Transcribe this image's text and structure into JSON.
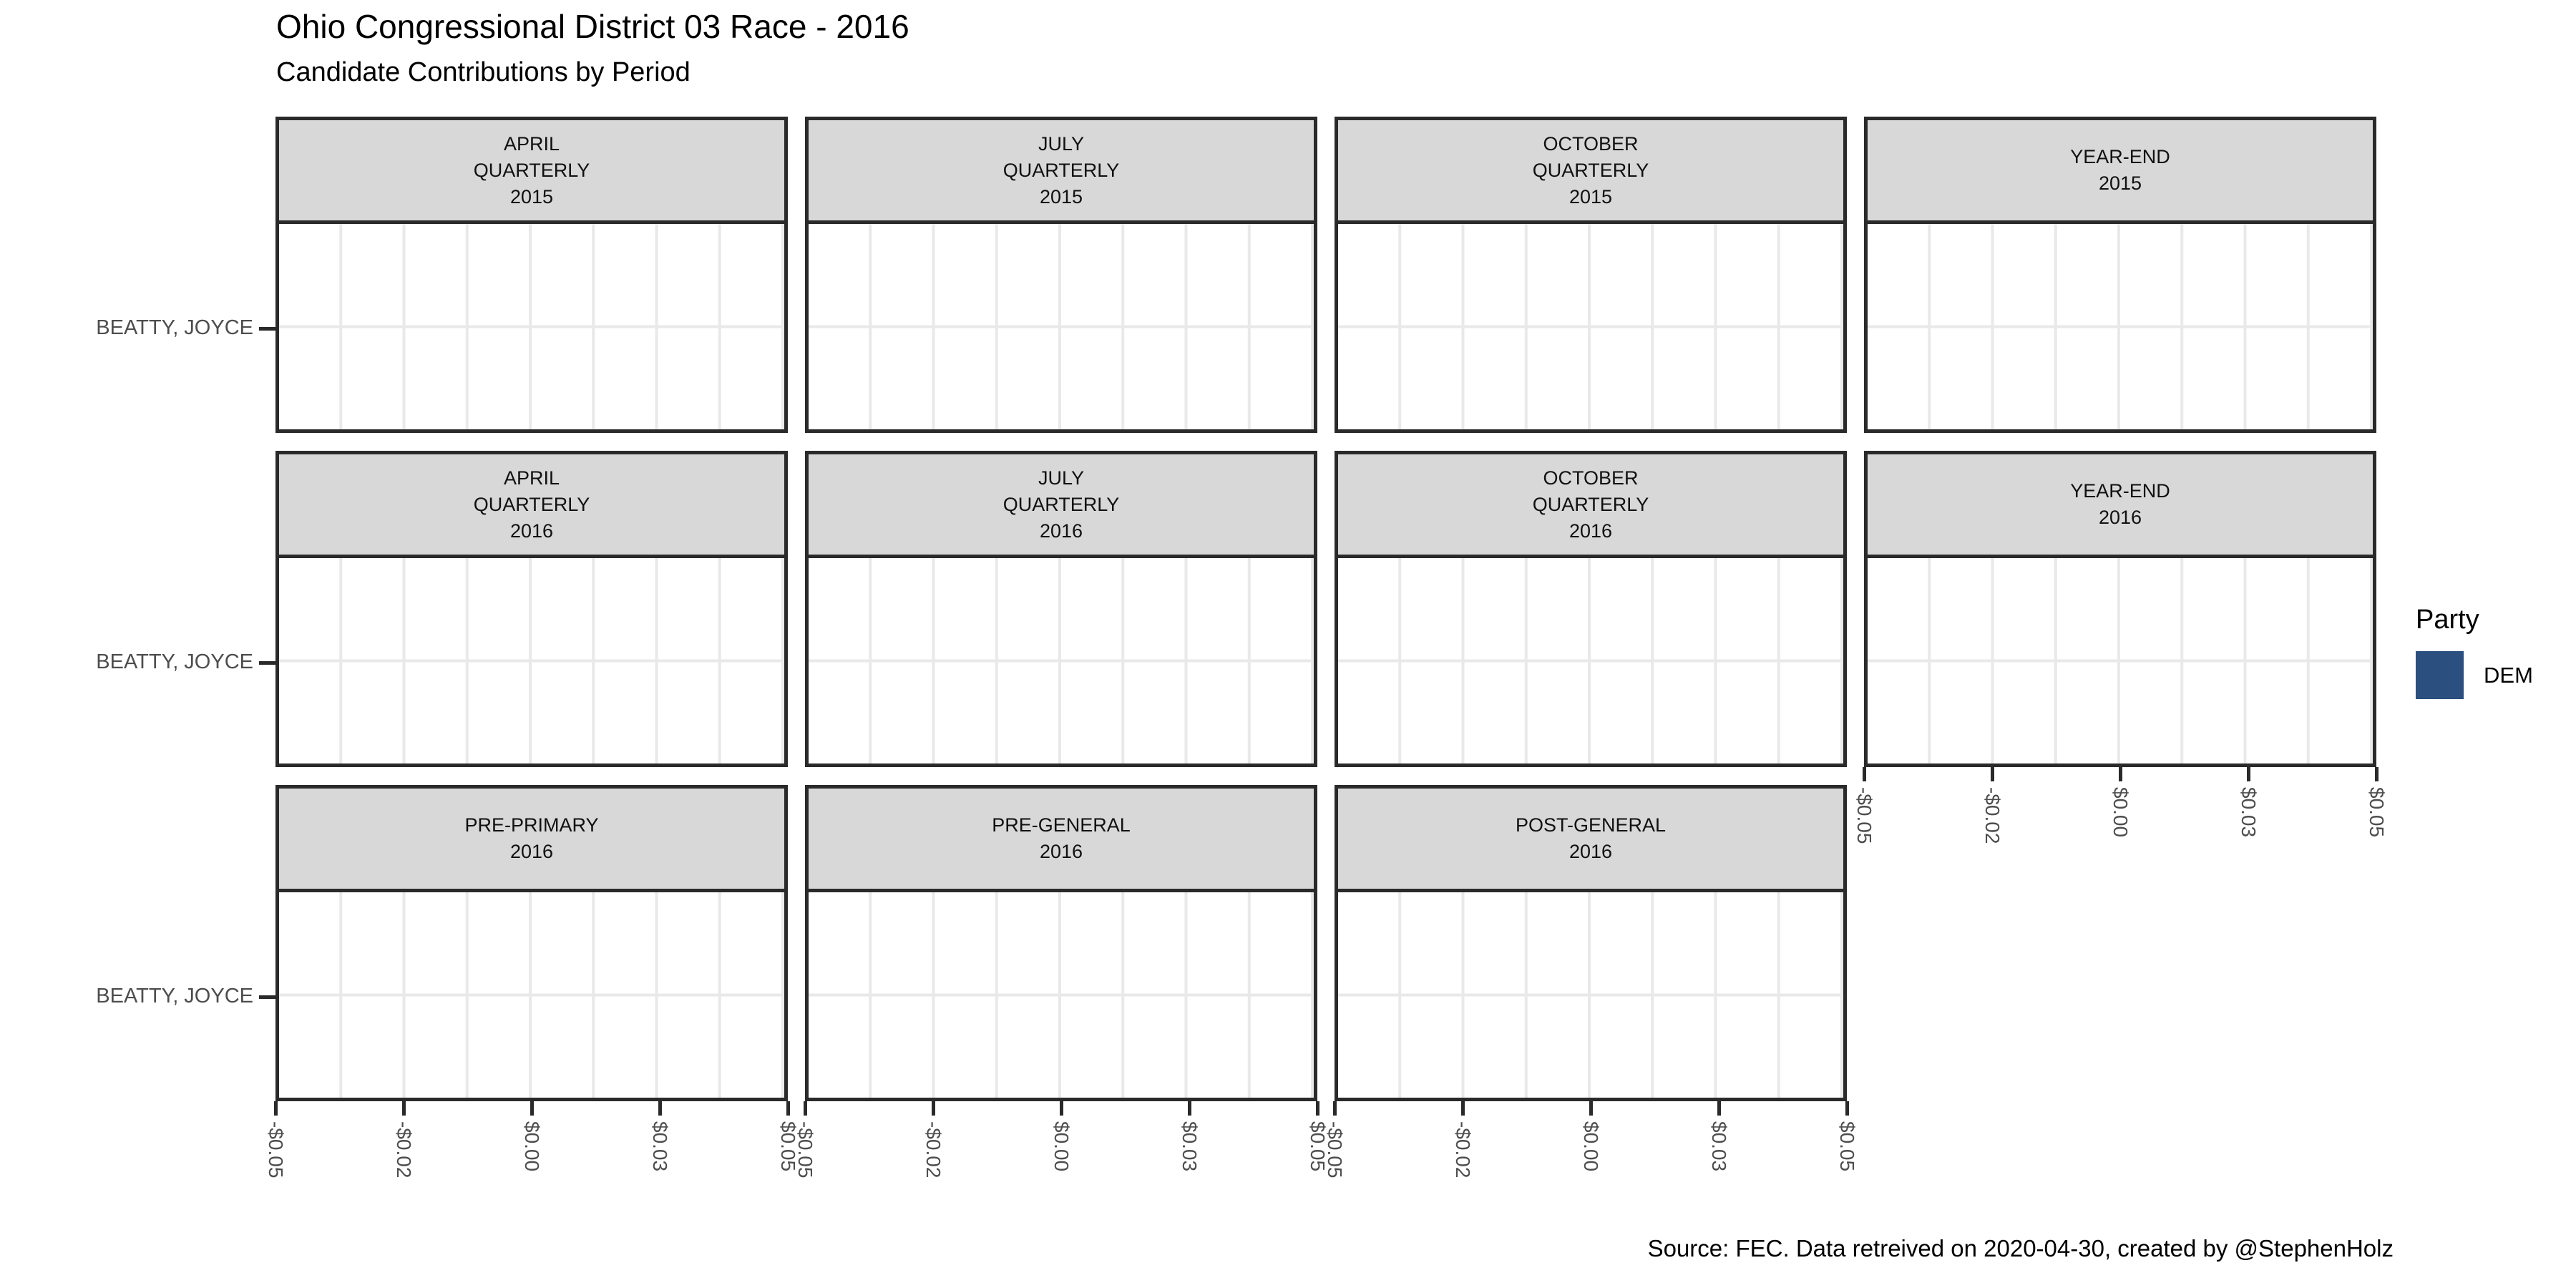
{
  "header": {
    "title": "Ohio Congressional District 03 Race - 2016",
    "subtitle": "Candidate Contributions by Period"
  },
  "caption": "Source: FEC. Data retreived on 2020-04-30, created by @StephenHolz",
  "rows": [
    {
      "y_label": "BEATTY, JOYCE",
      "facets": [
        {
          "lines": [
            "APRIL",
            "QUARTERLY",
            "2015"
          ]
        },
        {
          "lines": [
            "JULY",
            "QUARTERLY",
            "2015"
          ]
        },
        {
          "lines": [
            "OCTOBER",
            "QUARTERLY",
            "2015"
          ]
        },
        {
          "lines": [
            "YEAR-END",
            "2015"
          ]
        }
      ]
    },
    {
      "y_label": "BEATTY, JOYCE",
      "facets": [
        {
          "lines": [
            "APRIL",
            "QUARTERLY",
            "2016"
          ]
        },
        {
          "lines": [
            "JULY",
            "QUARTERLY",
            "2016"
          ]
        },
        {
          "lines": [
            "OCTOBER",
            "QUARTERLY",
            "2016"
          ]
        },
        {
          "lines": [
            "YEAR-END",
            "2016"
          ]
        }
      ]
    },
    {
      "y_label": "BEATTY, JOYCE",
      "facets": [
        {
          "lines": [
            "PRE-PRIMARY",
            "2016"
          ]
        },
        {
          "lines": [
            "PRE-GENERAL",
            "2016"
          ]
        },
        {
          "lines": [
            "POST-GENERAL",
            "2016"
          ]
        }
      ]
    }
  ],
  "x_axis": {
    "tick_labels": [
      "-$0.05",
      "-$0.02",
      "$0.00",
      "$0.03",
      "$0.05"
    ]
  },
  "legend": {
    "title": "Party",
    "items": [
      {
        "label": "DEM",
        "color": "#2B4F7E"
      }
    ]
  },
  "chart_data": {
    "type": "bar",
    "orientation": "horizontal",
    "title": "Ohio Congressional District 03 Race - 2016",
    "subtitle": "Candidate Contributions by Period",
    "caption": "Source: FEC. Data retreived on 2020-04-30, created by @StephenHolz",
    "facet_layout": {
      "rows": 3,
      "columns": 4,
      "facet_labels": [
        "APRIL QUARTERLY 2015",
        "JULY QUARTERLY 2015",
        "OCTOBER QUARTERLY 2015",
        "YEAR-END 2015",
        "APRIL QUARTERLY 2016",
        "JULY QUARTERLY 2016",
        "OCTOBER QUARTERLY 2016",
        "YEAR-END 2016",
        "PRE-PRIMARY 2016",
        "PRE-GENERAL 2016",
        "POST-GENERAL 2016"
      ]
    },
    "y_categories": [
      "BEATTY, JOYCE"
    ],
    "xlabel": "",
    "ylabel": "",
    "xlim": [
      -0.05,
      0.05
    ],
    "x_tick_values": [
      -0.05,
      -0.025,
      0.0,
      0.025,
      0.05
    ],
    "x_tick_labels": [
      "-$0.05",
      "-$0.02",
      "$0.00",
      "$0.03",
      "$0.05"
    ],
    "grid": true,
    "legend_position": "right",
    "series": [
      {
        "name": "DEM",
        "candidate": "BEATTY, JOYCE",
        "color": "#2B4F7E",
        "values_by_facet": {
          "APRIL QUARTERLY 2015": 0,
          "JULY QUARTERLY 2015": 0,
          "OCTOBER QUARTERLY 2015": 0,
          "YEAR-END 2015": 0,
          "APRIL QUARTERLY 2016": 0,
          "JULY QUARTERLY 2016": 0,
          "OCTOBER QUARTERLY 2016": 0,
          "YEAR-END 2016": 0,
          "PRE-PRIMARY 2016": 0,
          "PRE-GENERAL 2016": 0,
          "POST-GENERAL 2016": 0
        },
        "note": "No bars are drawn in any panel; all visible contribution values are zero/absent."
      }
    ]
  }
}
